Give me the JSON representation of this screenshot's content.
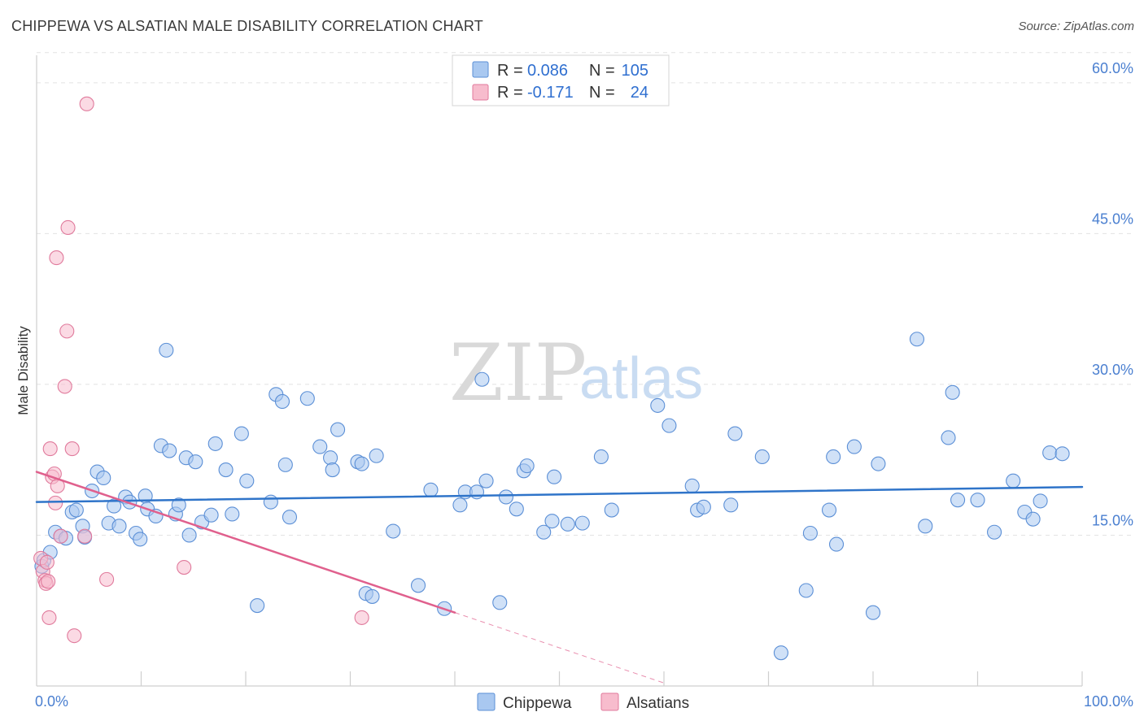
{
  "title": "CHIPPEWA VS ALSATIAN MALE DISABILITY CORRELATION CHART",
  "source": "Source: ZipAtlas.com",
  "watermark": {
    "zip": "ZIP",
    "atlas": "atlas"
  },
  "legend": {
    "r_label": "R =",
    "n_label": "N =",
    "rows": [
      {
        "r": "0.086",
        "n": "105",
        "color": "#a9c8f0",
        "stroke": "#5b8fd6"
      },
      {
        "r": "-0.171",
        "n": "24",
        "color": "#f7bccd",
        "stroke": "#e07a9c"
      }
    ]
  },
  "chart_data": {
    "type": "scatter",
    "xlabel": "",
    "ylabel": "Male Disability",
    "xlim": [
      0,
      100
    ],
    "ylim": [
      0,
      65
    ],
    "x_tick_labels": [
      {
        "value": 0,
        "label": "0.0%"
      },
      {
        "value": 100,
        "label": "100.0%"
      }
    ],
    "y_tick_labels": [
      {
        "value": 15,
        "label": "15.0%"
      },
      {
        "value": 30,
        "label": "30.0%"
      },
      {
        "value": 45,
        "label": "45.0%"
      },
      {
        "value": 60,
        "label": "60.0%"
      }
    ],
    "legend_position": "top-center",
    "grid": true,
    "series": [
      {
        "name": "Chippewa",
        "color": "#a9c8f0",
        "stroke": "#5b8fd6",
        "trend": {
          "x0": 0,
          "y0": 18.3,
          "x1": 100,
          "y1": 19.8,
          "color": "#2f74c9"
        },
        "points": [
          [
            0.5,
            11.9
          ],
          [
            0.7,
            12.5
          ],
          [
            1.3,
            13.3
          ],
          [
            1.8,
            15.3
          ],
          [
            2.3,
            14.9
          ],
          [
            2.8,
            14.7
          ],
          [
            3.4,
            17.3
          ],
          [
            3.8,
            17.5
          ],
          [
            4.4,
            15.9
          ],
          [
            4.6,
            14.8
          ],
          [
            5.3,
            19.4
          ],
          [
            5.8,
            21.3
          ],
          [
            6.4,
            20.7
          ],
          [
            6.9,
            16.2
          ],
          [
            7.4,
            17.9
          ],
          [
            7.9,
            15.9
          ],
          [
            8.5,
            18.8
          ],
          [
            8.9,
            18.3
          ],
          [
            9.5,
            15.2
          ],
          [
            9.9,
            14.6
          ],
          [
            10.4,
            18.9
          ],
          [
            10.6,
            17.6
          ],
          [
            11.4,
            16.9
          ],
          [
            11.9,
            23.9
          ],
          [
            12.4,
            33.4
          ],
          [
            12.7,
            23.4
          ],
          [
            13.3,
            17.1
          ],
          [
            13.6,
            18.0
          ],
          [
            14.3,
            22.7
          ],
          [
            14.6,
            15.0
          ],
          [
            15.2,
            22.3
          ],
          [
            15.8,
            16.3
          ],
          [
            16.7,
            17.0
          ],
          [
            17.1,
            24.1
          ],
          [
            18.1,
            21.5
          ],
          [
            18.7,
            17.1
          ],
          [
            19.6,
            25.1
          ],
          [
            20.1,
            20.4
          ],
          [
            21.1,
            8.0
          ],
          [
            22.4,
            18.3
          ],
          [
            22.9,
            29.0
          ],
          [
            23.5,
            28.3
          ],
          [
            23.8,
            22.0
          ],
          [
            24.2,
            16.8
          ],
          [
            25.9,
            28.6
          ],
          [
            27.1,
            23.8
          ],
          [
            28.1,
            22.7
          ],
          [
            28.3,
            21.5
          ],
          [
            28.8,
            25.5
          ],
          [
            30.7,
            22.3
          ],
          [
            31.1,
            22.1
          ],
          [
            31.5,
            9.2
          ],
          [
            32.1,
            8.9
          ],
          [
            32.5,
            22.9
          ],
          [
            34.1,
            15.4
          ],
          [
            36.5,
            10.0
          ],
          [
            37.7,
            19.5
          ],
          [
            39.0,
            7.7
          ],
          [
            40.5,
            18.0
          ],
          [
            41.0,
            19.3
          ],
          [
            42.1,
            19.3
          ],
          [
            42.6,
            30.5
          ],
          [
            43.0,
            20.4
          ],
          [
            44.3,
            8.3
          ],
          [
            44.9,
            18.8
          ],
          [
            45.9,
            17.6
          ],
          [
            46.6,
            21.4
          ],
          [
            46.9,
            21.9
          ],
          [
            48.5,
            15.3
          ],
          [
            49.3,
            16.4
          ],
          [
            49.5,
            20.8
          ],
          [
            50.8,
            16.1
          ],
          [
            52.2,
            16.2
          ],
          [
            54.0,
            22.8
          ],
          [
            55.0,
            17.5
          ],
          [
            59.4,
            27.9
          ],
          [
            60.5,
            25.9
          ],
          [
            62.7,
            19.9
          ],
          [
            63.2,
            17.5
          ],
          [
            63.8,
            17.8
          ],
          [
            66.4,
            18.0
          ],
          [
            66.8,
            25.1
          ],
          [
            69.4,
            22.8
          ],
          [
            71.2,
            3.3
          ],
          [
            73.6,
            9.5
          ],
          [
            74.0,
            15.2
          ],
          [
            75.8,
            17.5
          ],
          [
            76.2,
            22.8
          ],
          [
            76.5,
            14.1
          ],
          [
            78.2,
            23.8
          ],
          [
            80.5,
            22.1
          ],
          [
            84.2,
            34.5
          ],
          [
            85.0,
            15.9
          ],
          [
            87.2,
            24.7
          ],
          [
            87.6,
            29.2
          ],
          [
            88.1,
            18.5
          ],
          [
            90.0,
            18.5
          ],
          [
            91.6,
            15.3
          ],
          [
            93.4,
            20.4
          ],
          [
            94.5,
            17.3
          ],
          [
            95.3,
            16.6
          ],
          [
            96.0,
            18.4
          ],
          [
            96.9,
            23.2
          ],
          [
            98.1,
            23.1
          ],
          [
            80.0,
            7.3
          ]
        ]
      },
      {
        "name": "Alsatians",
        "color": "#f7bccd",
        "stroke": "#e07a9c",
        "trend": {
          "x0": 0,
          "y0": 21.3,
          "x1": 40,
          "y1": 7.3,
          "color": "#e0608d",
          "dash_to_x": 60,
          "dash_to_y": 0.3
        },
        "points": [
          [
            0.4,
            12.7
          ],
          [
            0.6,
            11.4
          ],
          [
            0.8,
            10.5
          ],
          [
            0.9,
            10.2
          ],
          [
            1.0,
            12.3
          ],
          [
            1.1,
            10.4
          ],
          [
            1.2,
            6.8
          ],
          [
            1.3,
            23.6
          ],
          [
            1.5,
            20.8
          ],
          [
            1.7,
            21.1
          ],
          [
            1.8,
            18.2
          ],
          [
            1.9,
            42.6
          ],
          [
            2.0,
            19.9
          ],
          [
            2.3,
            14.9
          ],
          [
            2.7,
            29.8
          ],
          [
            2.9,
            35.3
          ],
          [
            3.0,
            45.6
          ],
          [
            3.4,
            23.6
          ],
          [
            3.6,
            5.0
          ],
          [
            4.6,
            14.9
          ],
          [
            4.8,
            57.9
          ],
          [
            6.7,
            10.6
          ],
          [
            14.1,
            11.8
          ],
          [
            31.1,
            6.8
          ]
        ]
      }
    ]
  }
}
